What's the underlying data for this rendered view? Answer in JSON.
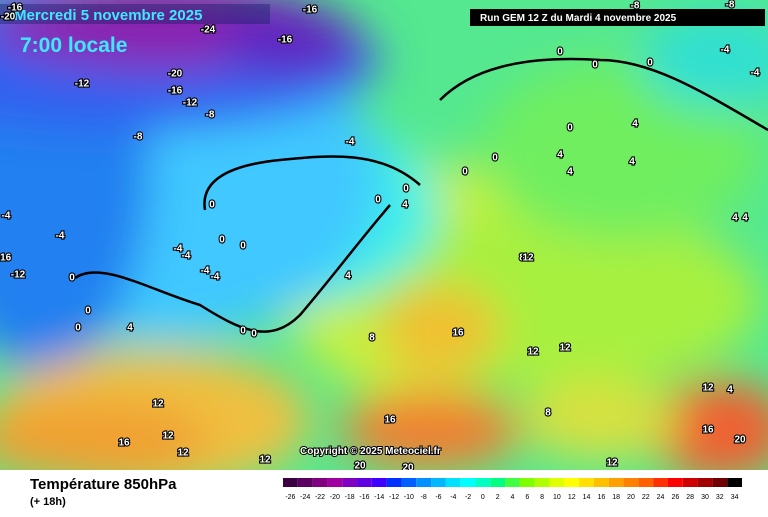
{
  "header": {
    "title": "Mercredi 5 novembre 2025",
    "time": "7:00 locale",
    "run": "Run GEM 12 Z du Mardi 4 novembre 2025"
  },
  "copyright": "Copyright © 2025 Meteociel.fr",
  "footer": {
    "parameter": "Température 850hPa",
    "lead": "(+ 18h)"
  },
  "scale": {
    "ticks": [
      -26,
      -24,
      -22,
      -20,
      -18,
      -16,
      -14,
      -12,
      -10,
      -8,
      -6,
      -4,
      -2,
      0,
      2,
      4,
      6,
      8,
      10,
      12,
      14,
      16,
      18,
      20,
      22,
      24,
      26,
      28,
      30,
      32,
      34
    ],
    "colors": [
      "#3a0040",
      "#5a0060",
      "#800080",
      "#a000a0",
      "#8000c0",
      "#6000e0",
      "#4000ff",
      "#0030ff",
      "#0060ff",
      "#0090ff",
      "#00b8ff",
      "#00e0ff",
      "#00ffff",
      "#00ffc0",
      "#00ff80",
      "#40ff40",
      "#80ff00",
      "#b0ff00",
      "#e0ff00",
      "#ffff00",
      "#ffe000",
      "#ffc000",
      "#ffa000",
      "#ff8000",
      "#ff6000",
      "#ff3000",
      "#ff0000",
      "#d00000",
      "#a00000",
      "#700000",
      "#000000"
    ]
  },
  "contour_labels": [
    -16,
    -20,
    -16,
    -24,
    -16,
    -20,
    -16,
    -12,
    -12,
    -8,
    -8,
    -4,
    0,
    0,
    0,
    -4,
    -4,
    -8,
    -8,
    0,
    0,
    4,
    4,
    0,
    4,
    4,
    0,
    0,
    0,
    0,
    0,
    4,
    4,
    4,
    -4,
    -4,
    -4,
    -4,
    -4,
    -4,
    -16,
    -12,
    4,
    0,
    0,
    0,
    0,
    0,
    4,
    8,
    16,
    8,
    12,
    16,
    12,
    16,
    12,
    12,
    12,
    20,
    20,
    20,
    16,
    12,
    12,
    8,
    12,
    12,
    4
  ]
}
